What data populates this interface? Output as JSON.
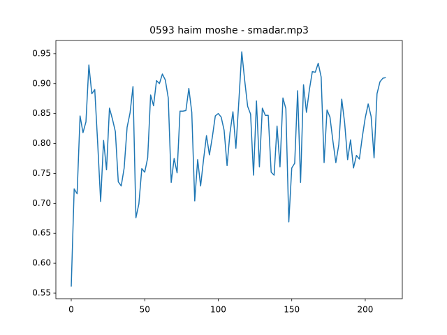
{
  "chart_data": {
    "type": "line",
    "title": "0593 haim moshe - smadar.mp3",
    "x": [
      0,
      2,
      4,
      6,
      8,
      10,
      12,
      14,
      16,
      18,
      20,
      22,
      24,
      26,
      28,
      30,
      32,
      34,
      36,
      38,
      40,
      42,
      44,
      46,
      48,
      50,
      52,
      54,
      56,
      58,
      60,
      62,
      64,
      66,
      68,
      70,
      72,
      74,
      76,
      78,
      80,
      82,
      84,
      86,
      88,
      90,
      92,
      94,
      96,
      98,
      100,
      102,
      104,
      106,
      108,
      110,
      112,
      114,
      116,
      118,
      120,
      122,
      124,
      126,
      128,
      130,
      132,
      134,
      136,
      138,
      140,
      142,
      144,
      146,
      148,
      150,
      152,
      154,
      156,
      158,
      160,
      162,
      164,
      166,
      168,
      170,
      172,
      174,
      176,
      178,
      180,
      182,
      184,
      186,
      188,
      190,
      192,
      194,
      196,
      198,
      200,
      202,
      204,
      206,
      208,
      210,
      212,
      214
    ],
    "series": [
      {
        "color": "#1f77b4",
        "values": [
          0.561,
          0.724,
          0.716,
          0.846,
          0.818,
          0.836,
          0.931,
          0.883,
          0.89,
          0.8,
          0.703,
          0.805,
          0.756,
          0.859,
          0.841,
          0.82,
          0.736,
          0.729,
          0.759,
          0.827,
          0.851,
          0.895,
          0.676,
          0.699,
          0.758,
          0.752,
          0.776,
          0.881,
          0.863,
          0.905,
          0.9,
          0.916,
          0.906,
          0.876,
          0.735,
          0.775,
          0.751,
          0.854,
          0.854,
          0.855,
          0.892,
          0.852,
          0.704,
          0.773,
          0.729,
          0.773,
          0.813,
          0.781,
          0.811,
          0.846,
          0.85,
          0.844,
          0.822,
          0.763,
          0.818,
          0.853,
          0.792,
          0.87,
          0.953,
          0.905,
          0.862,
          0.849,
          0.747,
          0.871,
          0.761,
          0.859,
          0.847,
          0.847,
          0.752,
          0.747,
          0.829,
          0.761,
          0.876,
          0.858,
          0.669,
          0.759,
          0.767,
          0.888,
          0.735,
          0.898,
          0.852,
          0.89,
          0.92,
          0.919,
          0.934,
          0.911,
          0.768,
          0.856,
          0.844,
          0.804,
          0.768,
          0.798,
          0.874,
          0.834,
          0.773,
          0.806,
          0.759,
          0.78,
          0.774,
          0.811,
          0.843,
          0.866,
          0.845,
          0.776,
          0.883,
          0.903,
          0.909,
          0.91
        ]
      }
    ],
    "xlim": [
      -10.45,
      225.2
    ],
    "xticks": [
      0,
      50,
      100,
      150,
      200
    ],
    "ylim": [
      0.5407,
      0.972
    ],
    "yticks": [
      {
        "value": 0.55,
        "label": "0.55"
      },
      {
        "value": 0.6,
        "label": "0.60"
      },
      {
        "value": 0.65,
        "label": "0.65"
      },
      {
        "value": 0.7,
        "label": "0.70"
      },
      {
        "value": 0.75,
        "label": "0.75"
      },
      {
        "value": 0.8,
        "label": "0.80"
      },
      {
        "value": 0.85,
        "label": "0.85"
      },
      {
        "value": 0.9,
        "label": "0.90"
      },
      {
        "value": 0.95,
        "label": "0.95"
      }
    ]
  }
}
